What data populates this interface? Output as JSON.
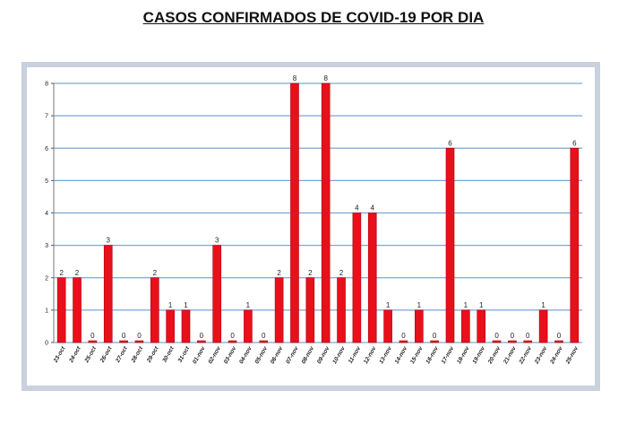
{
  "chart_data": {
    "type": "bar",
    "title": "CASOS CONFIRMADOS DE COVID-19 POR DIA",
    "categories": [
      "23-oct",
      "24-oct",
      "25-oct",
      "26-oct",
      "27-oct",
      "28-oct",
      "29-oct",
      "30-oct",
      "31-oct",
      "01-nov",
      "02-nov",
      "03-nov",
      "04-nov",
      "05-nov",
      "06-nov",
      "07-nov",
      "08-nov",
      "09-nov",
      "10-nov",
      "11-nov",
      "12-nov",
      "13-nov",
      "14-nov",
      "15-nov",
      "16-nov",
      "17-nov",
      "18-nov",
      "19-nov",
      "20-nov",
      "21-nov",
      "22-nov",
      "23-nov",
      "24-nov",
      "25-nov"
    ],
    "values": [
      2,
      2,
      0,
      3,
      0,
      0,
      2,
      1,
      1,
      0,
      3,
      0,
      1,
      0,
      2,
      8,
      2,
      8,
      2,
      4,
      4,
      1,
      0,
      1,
      0,
      6,
      1,
      1,
      0,
      0,
      0,
      1,
      0,
      6
    ],
    "xlabel": "",
    "ylabel": "",
    "ylim": [
      0,
      8
    ],
    "yticks": [
      0,
      1,
      2,
      3,
      4,
      5,
      6,
      7,
      8
    ],
    "grid": true,
    "bar_color": "#e8101a",
    "grid_color": "#7aa6d6",
    "frame_color": "#c9d0de"
  }
}
